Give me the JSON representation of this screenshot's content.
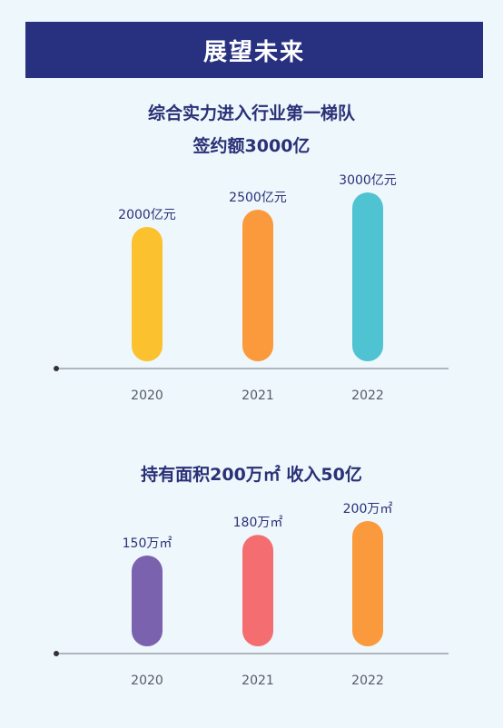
{
  "header": {
    "title": "展望未来"
  },
  "chart_data": [
    {
      "type": "bar",
      "title": "综合实力进入行业第一梯队",
      "subtitle": "签约额3000亿",
      "categories": [
        "2020",
        "2021",
        "2022"
      ],
      "values": [
        2000,
        2500,
        3000
      ],
      "data_labels": [
        "2000亿元",
        "2500亿元",
        "3000亿元"
      ],
      "unit": "亿元",
      "ylim": [
        0,
        3000
      ],
      "colors": [
        "#fcc12e",
        "#fb9a3c",
        "#50c3d2"
      ]
    },
    {
      "type": "bar",
      "title": "持有面积200万㎡ 收入50亿",
      "categories": [
        "2020",
        "2021",
        "2022"
      ],
      "values": [
        150,
        180,
        200
      ],
      "data_labels": [
        "150万㎡",
        "180万㎡",
        "200万㎡"
      ],
      "unit": "万㎡",
      "ylim": [
        0,
        200
      ],
      "colors": [
        "#7b62af",
        "#f36d71",
        "#fb9a3c"
      ]
    }
  ]
}
